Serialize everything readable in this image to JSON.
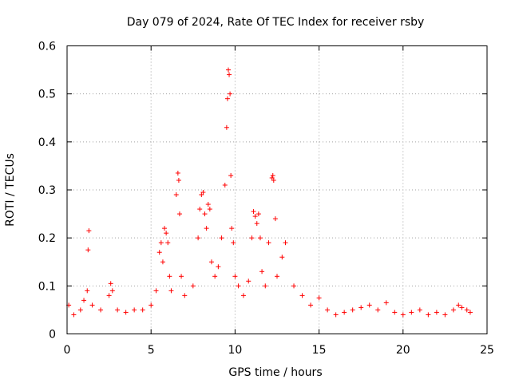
{
  "chart_data": {
    "type": "scatter",
    "title": "Day 079 of 2024, Rate Of TEC Index for receiver rsby",
    "xlabel": "GPS time / hours",
    "ylabel": "ROTI / TECUs",
    "xlim": [
      0,
      25
    ],
    "ylim": [
      0,
      0.6
    ],
    "xticks": [
      "0",
      "5",
      "10",
      "15",
      "20",
      "25"
    ],
    "yticks": [
      "0",
      "0.1",
      "0.2",
      "0.3",
      "0.4",
      "0.5",
      "0.6"
    ],
    "grid": true,
    "marker": "+",
    "color": "#ff0000",
    "series": [
      {
        "name": "ROTI",
        "x": [
          0.1,
          0.4,
          0.8,
          1.0,
          1.2,
          1.25,
          1.3,
          1.5,
          2.0,
          2.5,
          2.6,
          2.7,
          3.0,
          3.5,
          4.0,
          4.5,
          5.0,
          5.3,
          5.5,
          5.6,
          5.7,
          5.8,
          5.9,
          6.0,
          6.1,
          6.2,
          6.5,
          6.6,
          6.65,
          6.7,
          6.8,
          7.0,
          7.5,
          7.8,
          7.9,
          8.0,
          8.1,
          8.2,
          8.3,
          8.4,
          8.5,
          8.6,
          8.8,
          9.0,
          9.2,
          9.4,
          9.5,
          9.55,
          9.6,
          9.65,
          9.7,
          9.75,
          9.8,
          9.9,
          10.0,
          10.2,
          10.5,
          10.8,
          11.0,
          11.1,
          11.2,
          11.3,
          11.4,
          11.5,
          11.6,
          11.8,
          12.0,
          12.2,
          12.25,
          12.3,
          12.4,
          12.5,
          12.8,
          13.0,
          13.5,
          14.0,
          14.5,
          15.0,
          15.5,
          16.0,
          16.5,
          17.0,
          17.5,
          18.0,
          18.5,
          19.0,
          19.5,
          20.0,
          20.5,
          21.0,
          21.5,
          22.0,
          22.5,
          23.0,
          23.3,
          23.5,
          23.8,
          24.0
        ],
        "values": [
          0.06,
          0.04,
          0.05,
          0.07,
          0.09,
          0.175,
          0.215,
          0.06,
          0.05,
          0.08,
          0.105,
          0.09,
          0.05,
          0.045,
          0.05,
          0.05,
          0.06,
          0.09,
          0.17,
          0.19,
          0.15,
          0.22,
          0.21,
          0.19,
          0.12,
          0.09,
          0.29,
          0.335,
          0.32,
          0.25,
          0.12,
          0.08,
          0.1,
          0.2,
          0.26,
          0.29,
          0.295,
          0.25,
          0.22,
          0.27,
          0.26,
          0.15,
          0.12,
          0.14,
          0.2,
          0.31,
          0.43,
          0.49,
          0.55,
          0.54,
          0.5,
          0.33,
          0.22,
          0.19,
          0.12,
          0.1,
          0.08,
          0.11,
          0.2,
          0.255,
          0.245,
          0.23,
          0.25,
          0.2,
          0.13,
          0.1,
          0.19,
          0.325,
          0.33,
          0.32,
          0.24,
          0.12,
          0.16,
          0.19,
          0.1,
          0.08,
          0.06,
          0.075,
          0.05,
          0.04,
          0.045,
          0.05,
          0.055,
          0.06,
          0.05,
          0.065,
          0.045,
          0.04,
          0.045,
          0.05,
          0.04,
          0.045,
          0.04,
          0.05,
          0.06,
          0.055,
          0.05,
          0.045
        ]
      }
    ]
  }
}
